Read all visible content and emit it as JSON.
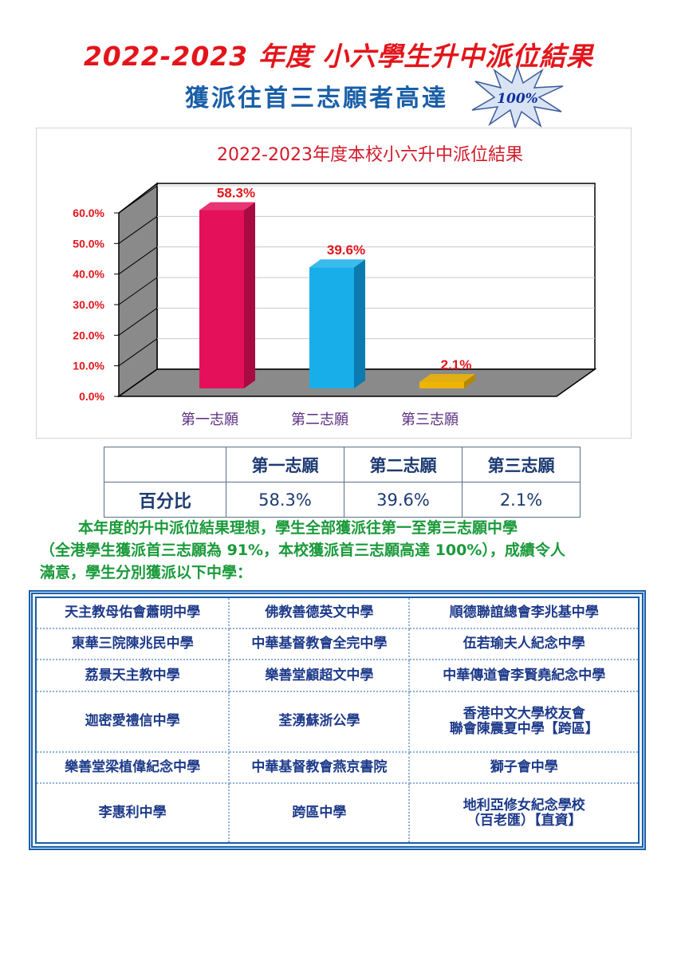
{
  "header": {
    "title": "2022-2023 年度 小六學生升中派位結果",
    "subtitle": "獲派往首三志願者高達",
    "badge": "100%"
  },
  "chart_data": {
    "type": "bar",
    "title": "2022-2023年度本校小六升中派位結果",
    "categories": [
      "第一志願",
      "第二志願",
      "第三志願"
    ],
    "values": [
      58.3,
      39.6,
      2.1
    ],
    "data_labels": [
      "58.3%",
      "39.6%",
      "2.1%"
    ],
    "y_ticks": [
      "0.0%",
      "10.0%",
      "20.0%",
      "30.0%",
      "40.0%",
      "50.0%",
      "60.0%"
    ],
    "ylim": [
      0,
      60
    ],
    "grid": true,
    "colors": [
      "#e5105a",
      "#18aeea",
      "#f0b400"
    ],
    "side_colors": [
      "#a80a42",
      "#0a7ab0",
      "#b78600"
    ],
    "label_color": "#e3151b",
    "tick_color": "#e3151b",
    "category_color": "#5a2d82"
  },
  "stats_table": {
    "headers": [
      "第一志願",
      "第二志願",
      "第三志願"
    ],
    "row_label": "百分比",
    "values": [
      "58.3%",
      "39.6%",
      "2.1%"
    ]
  },
  "summary": {
    "line1": "本年度的升中派位結果理想，學生全部獲派往第一至第三志願中學",
    "line2": "（全港學生獲派首三志願為 91%，本校獲派首三志願高達 100%），成績令人",
    "line3": "滿意，學生分別獲派以下中學："
  },
  "schools": [
    [
      "天主教母佑會蕭明中學",
      "佛教善德英文中學",
      "順德聯誼總會李兆基中學"
    ],
    [
      "東華三院陳兆民中學",
      "中華基督教會全完中學",
      "伍若瑜夫人紀念中學"
    ],
    [
      "荔景天主教中學",
      "樂善堂顧超文中學",
      "中華傳道會李賢堯紀念中學"
    ],
    [
      "迦密愛禮信中學",
      "荃湧蘇浙公學",
      "香港中文大學校友會\n聯會陳震夏中學【跨區】"
    ],
    [
      "樂善堂梁植偉紀念中學",
      "中華基督教會燕京書院",
      "獅子會中學"
    ],
    [
      "李惠利中學",
      "跨區中學",
      "地利亞修女紀念學校\n（百老匯）【直資】"
    ]
  ]
}
